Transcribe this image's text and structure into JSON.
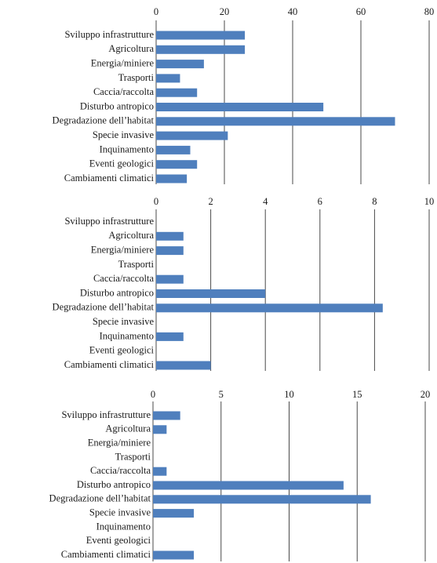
{
  "colors": {
    "bar": "#4f7fbd",
    "grid": "#4a4a4a",
    "text": "#1a1a1a",
    "background": "#ffffff"
  },
  "chart_data": [
    {
      "type": "bar",
      "orientation": "horizontal",
      "x_axis_position": "top",
      "grid": "vertical",
      "xlim": [
        0,
        80
      ],
      "xticks": [
        0,
        20,
        40,
        60,
        80
      ],
      "categories": [
        "Sviluppo infrastrutture",
        "Agricoltura",
        "Energia/miniere",
        "Trasporti",
        "Caccia/raccolta",
        "Disturbo antropico",
        "Degradazione dell’habitat",
        "Specie invasive",
        "Inquinamento",
        "Eventi geologici",
        "Cambiamenti climatici"
      ],
      "values": [
        26,
        26,
        14,
        7,
        12,
        49,
        70,
        21,
        10,
        12,
        9
      ]
    },
    {
      "type": "bar",
      "orientation": "horizontal",
      "x_axis_position": "top",
      "grid": "vertical",
      "xlim": [
        0,
        10
      ],
      "xticks": [
        0,
        2,
        4,
        6,
        8,
        10
      ],
      "categories": [
        "Sviluppo infrastrutture",
        "Agricoltura",
        "Energia/miniere",
        "Trasporti",
        "Caccia/raccolta",
        "Disturbo antropico",
        "Degradazione dell’habitat",
        "Specie invasive",
        "Inquinamento",
        "Eventi geologici",
        "Cambiamenti climatici"
      ],
      "values": [
        0,
        1,
        1,
        0,
        1,
        4,
        8.3,
        0,
        1,
        0,
        2
      ]
    },
    {
      "type": "bar",
      "orientation": "horizontal",
      "x_axis_position": "top",
      "grid": "vertical",
      "xlim": [
        0,
        20
      ],
      "xticks": [
        0,
        5,
        10,
        15,
        20
      ],
      "categories": [
        "Sviluppo infrastrutture",
        "Agricoltura",
        "Energia/miniere",
        "Trasporti",
        "Caccia/raccolta",
        "Disturbo antropico",
        "Degradazione dell’habitat",
        "Specie invasive",
        "Inquinamento",
        "Eventi geologici",
        "Cambiamenti climatici"
      ],
      "values": [
        2,
        1,
        0,
        0,
        1,
        14,
        16,
        3,
        0,
        0,
        3
      ]
    }
  ]
}
